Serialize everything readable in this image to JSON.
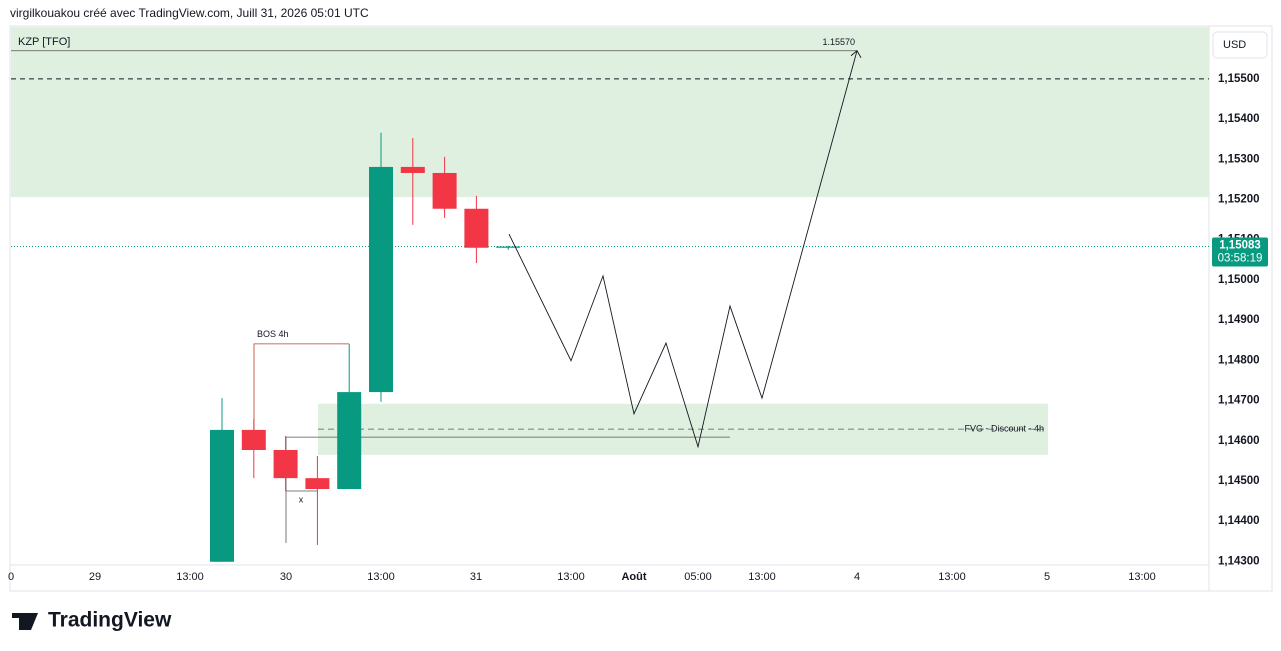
{
  "chart_data": {
    "type": "candlestick",
    "header": "virgilkouakou créé avec TradingView.com, Juill 31, 2026 05:01 UTC",
    "indicator": "KZP [TFO]",
    "currency": "USD",
    "brand": "TradingView",
    "up_color": "#089981",
    "down_color": "#f23645",
    "open": [
      1.14299,
      1.14627,
      1.14577,
      1.14507,
      1.1448,
      1.14721,
      1.15281,
      1.15266,
      1.15177,
      1.1508
    ],
    "high": [
      1.14706,
      1.14654,
      1.14612,
      1.14562,
      1.14841,
      1.15366,
      1.15353,
      1.15306,
      1.15209,
      1.15085
    ],
    "low": [
      1.14299,
      1.14507,
      1.14475,
      1.14341,
      1.1448,
      1.14697,
      1.15137,
      1.15154,
      1.15042,
      1.15075
    ],
    "close": [
      1.14627,
      1.14577,
      1.14507,
      1.1448,
      1.14721,
      1.15281,
      1.15266,
      1.15177,
      1.1508,
      1.15083
    ],
    "ylim": [
      1.14291,
      1.15629
    ],
    "yticks": [
      {
        "value": 1.143,
        "label": "1,14300"
      },
      {
        "value": 1.144,
        "label": "1,14400"
      },
      {
        "value": 1.145,
        "label": "1,14500"
      },
      {
        "value": 1.146,
        "label": "1,14600"
      },
      {
        "value": 1.147,
        "label": "1,14700"
      },
      {
        "value": 1.148,
        "label": "1,14800"
      },
      {
        "value": 1.149,
        "label": "1,14900"
      },
      {
        "value": 1.15,
        "label": "1,15000"
      },
      {
        "value": 1.151,
        "label": "1,15100"
      },
      {
        "value": 1.152,
        "label": "1,15200"
      },
      {
        "value": 1.153,
        "label": "1,15300"
      },
      {
        "value": 1.154,
        "label": "1,15400"
      },
      {
        "value": 1.155,
        "label": "1,15500"
      }
    ],
    "xtick_labels": [
      "0",
      "29",
      "13:00",
      "30",
      "13:00",
      "31",
      "13:00",
      "Août",
      "05:00",
      "13:00",
      "4",
      "13:00",
      "5",
      "13:00"
    ],
    "last_price": {
      "value": 1.15083,
      "label": "1,15083"
    },
    "countdown": "03:58:19",
    "premium_zone_bottom": 1.15206,
    "dashed_level": 1.155,
    "kzp_level": {
      "value": 1.1557,
      "label": "1.15570"
    },
    "bos": {
      "value": 1.14841,
      "label": "BOS 4h"
    },
    "sweep": {
      "value": 1.14609,
      "label": "x"
    },
    "fvg": {
      "top": 1.14692,
      "bottom": 1.14565,
      "mid": 1.14629,
      "label": "FVG - Discount - 4h"
    },
    "projection": [
      1.15114,
      1.14799,
      1.1501,
      1.14667,
      1.14843,
      1.14585,
      1.14935,
      1.14706,
      1.1557
    ]
  }
}
